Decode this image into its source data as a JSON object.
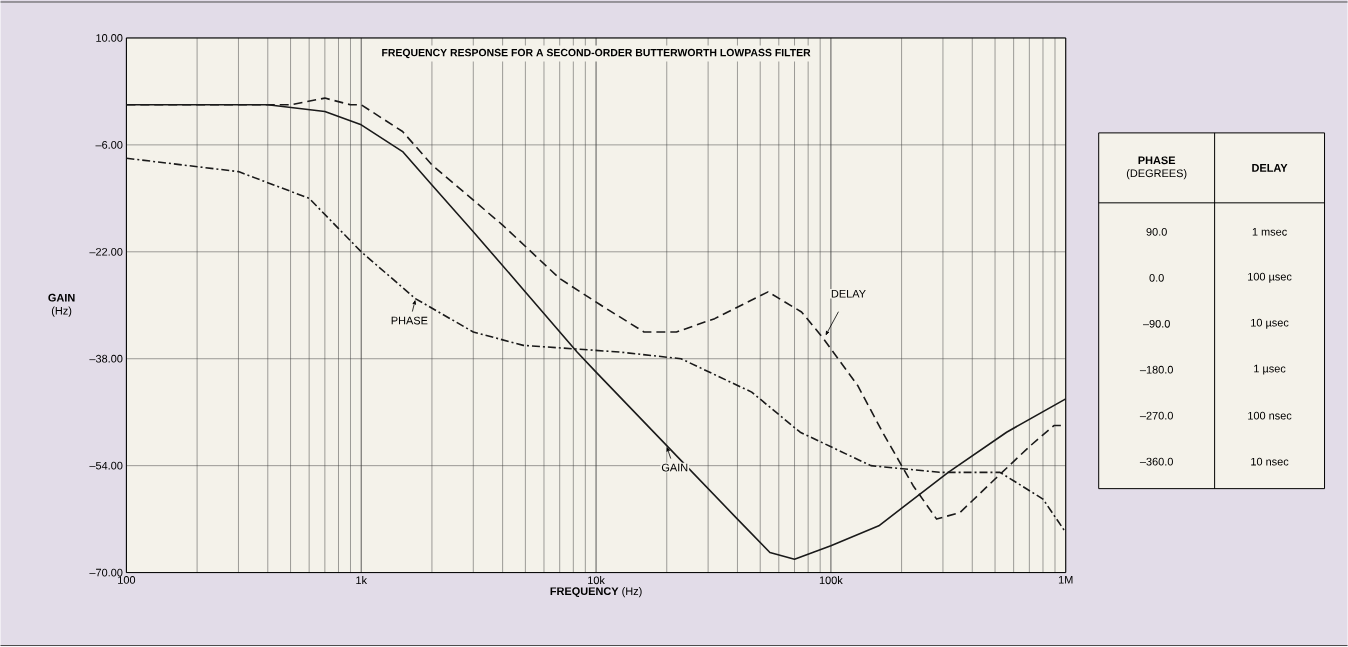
{
  "chart_data": {
    "type": "line",
    "title": "FREQUENCY RESPONSE FOR A SECOND-ORDER BUTTERWORTH LOWPASS FILTER",
    "xlabel": "**FREQUENCY** (Hz)",
    "ylabel": "**GAIN** (Hz)",
    "log": "x",
    "grid": true,
    "legend": false,
    "marker": "none",
    "xlim": [
      100,
      1000000
    ],
    "xticks": [
      100,
      {
        "value": 1000,
        "label": "1k"
      },
      {
        "value": 10000,
        "label": "10k"
      },
      {
        "value": 100000,
        "label": "100k"
      },
      {
        "value": 1000000,
        "label": "1M"
      }
    ],
    "ylim": [
      -70,
      10
    ],
    "yticks": [
      {
        "value": 10,
        "label": "10.00"
      },
      {
        "value": -6,
        "label": "–6.00"
      },
      {
        "value": -22,
        "label": "–22.00"
      },
      {
        "value": -38,
        "label": "–38.00"
      },
      {
        "value": -54,
        "label": "–54.00"
      },
      {
        "value": -70,
        "label": "–70.00"
      }
    ],
    "series": [
      {
        "name": "GAIN",
        "color": "#1a1a1a",
        "line_style": "solid",
        "x": [
          100,
          200,
          400,
          700,
          1000,
          1500,
          2000,
          3000,
          5000,
          8300,
          10000,
          20000,
          40000,
          55000,
          70000,
          100000,
          160000,
          316000,
          560000,
          1000000
        ],
        "values": [
          0,
          0,
          0,
          -1,
          -3,
          -7,
          -12,
          -19,
          -28,
          -37,
          -40,
          -51,
          -62,
          -67,
          -68,
          -66,
          -63,
          -55,
          -49,
          -44
        ]
      },
      {
        "name": "DELAY",
        "color": "#1a1a1a",
        "line_style": "dashed",
        "x": [
          100,
          300,
          500,
          700,
          900,
          1000,
          1500,
          2000,
          4000,
          7000,
          10500,
          16000,
          22000,
          32000,
          54000,
          75000,
          93000,
          130000,
          166000,
          224000,
          282000,
          355000,
          500000,
          708000,
          891000,
          1000000
        ],
        "values": [
          0,
          0,
          0,
          1,
          0,
          0,
          -4,
          -9,
          -18,
          -26,
          -30,
          -34,
          -34,
          -32,
          -28,
          -31,
          -35,
          -42,
          -49,
          -57,
          -62,
          -61,
          -56,
          -51,
          -48,
          -48
        ]
      },
      {
        "name": "PHASE",
        "color": "#1a1a1a",
        "line_style": "dashdot",
        "x": [
          100,
          300,
          600,
          1000,
          1700,
          3000,
          4900,
          12600,
          23000,
          46000,
          74000,
          148000,
          290000,
          525000,
          800000,
          1000000
        ],
        "values": [
          -8,
          -10,
          -14,
          -22,
          -29,
          -34,
          -36,
          -37,
          -38,
          -43,
          -49,
          -54,
          -55,
          -55,
          -59,
          -64
        ]
      }
    ],
    "annotations": [
      "**PHASE** (DEGREES)",
      "**DELAY**",
      "90.0",
      "1 msec",
      "0.0",
      "100 µsec",
      "–90.0",
      "10 µsec",
      "–180.0",
      "1 µsec",
      "–270.0",
      "100 nsec",
      "–360.0",
      "10 nsec"
    ]
  }
}
